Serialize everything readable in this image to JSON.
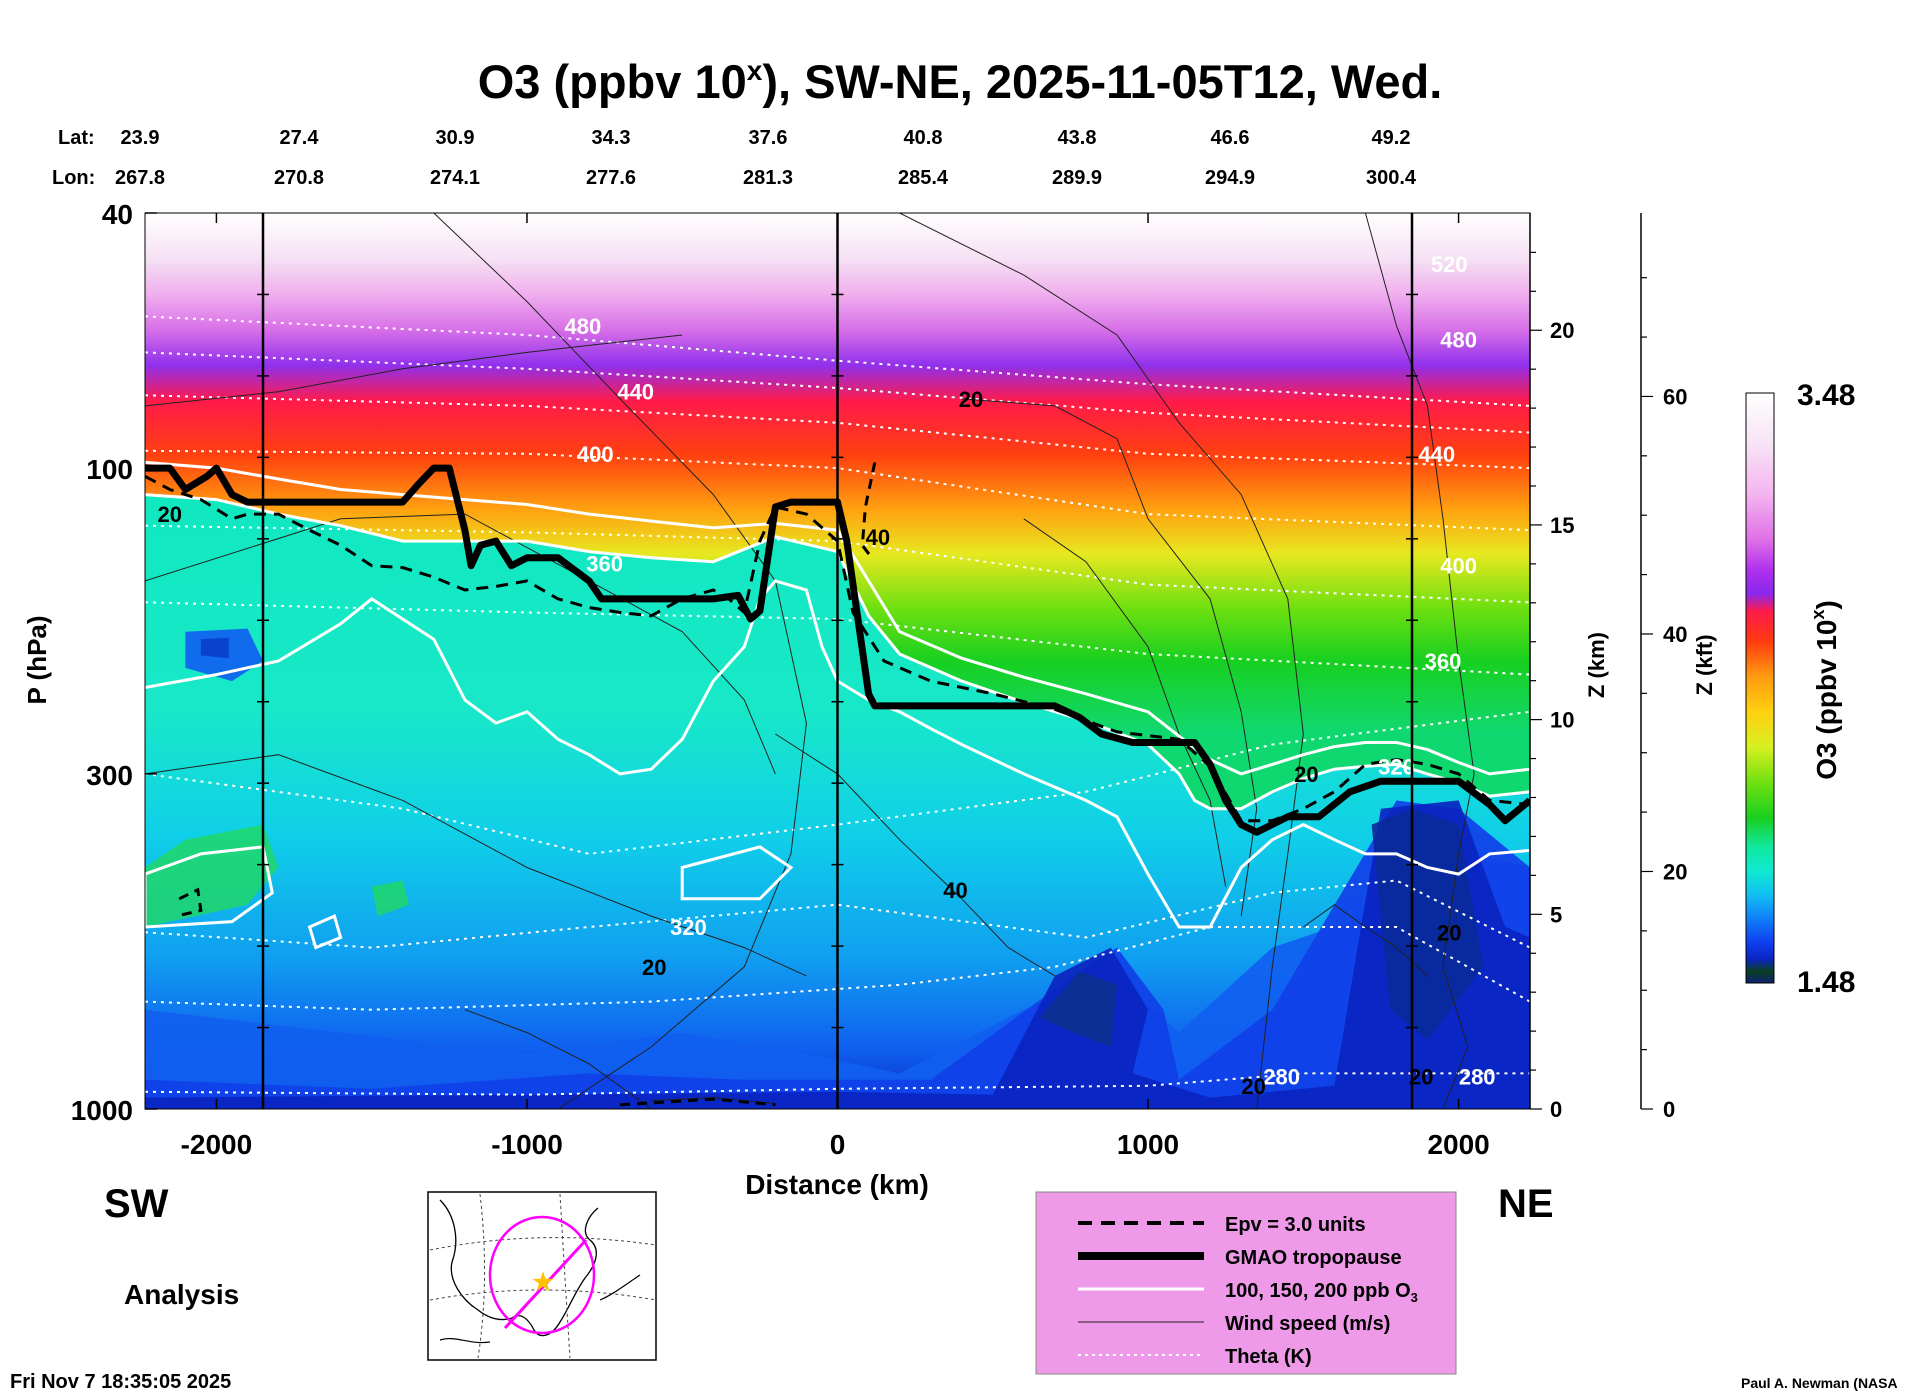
{
  "title": {
    "main": "O3 (ppbv 10",
    "sup": "x",
    "rest": "), SW-NE, 2025-11-05T12, Wed."
  },
  "lat_label": "Lat:",
  "lon_label": "Lon:",
  "lats": [
    "23.9",
    "27.4",
    "30.9",
    "34.3",
    "37.6",
    "40.8",
    "43.8",
    "46.6",
    "49.2"
  ],
  "lons": [
    "267.8",
    "270.8",
    "274.1",
    "277.6",
    "281.3",
    "285.4",
    "289.9",
    "294.9",
    "300.4"
  ],
  "ylabel": "P (hPa)",
  "xlabel": "Distance (km)",
  "z_km_label": "Z (km)",
  "z_kft_label": "Z (kft)",
  "colorbar_label_main": "O3 (ppbv 10",
  "colorbar_label_sup": "x",
  "colorbar_label_rest": ")",
  "colorbar_max": "3.48",
  "colorbar_min": "1.48",
  "sw_label": "SW",
  "ne_label": "NE",
  "analysis_label": "Analysis",
  "timestamp": "Fri Nov  7 18:35:05 2025",
  "credit": "Paul A. Newman (NASA",
  "legend": [
    {
      "style": "dashed",
      "label": "Epv = 3.0 units"
    },
    {
      "style": "thick",
      "label": "GMAO tropopause"
    },
    {
      "style": "white",
      "label": "100, 150, 200 ppb O",
      "sub": "3"
    },
    {
      "style": "thin",
      "label": "Wind speed (m/s)"
    },
    {
      "style": "dotted",
      "label": "Theta (K)"
    }
  ],
  "colors": {
    "legend_bg": "#ee9ae8",
    "cross_line": "#ff00ff"
  },
  "chart_data": {
    "type": "heatmap",
    "x_ticks": [
      -2000,
      -1000,
      0,
      1000,
      2000
    ],
    "xlim": [
      -2230,
      2230
    ],
    "y_ticks_p": [
      40,
      100,
      300,
      1000
    ],
    "ylim_p": [
      1000,
      40
    ],
    "y_scale": "log",
    "z_km_ticks": [
      0,
      5,
      10,
      15,
      20
    ],
    "z_kft_ticks": [
      0,
      20,
      40,
      60
    ],
    "colorbar_range": [
      1.48,
      3.48
    ],
    "vertical_lines_km": [
      -1850,
      0,
      1850
    ],
    "theta_labels": [
      {
        "text": "520",
        "x": 1970,
        "p": 48
      },
      {
        "text": "480",
        "x": -820,
        "p": 60
      },
      {
        "text": "480",
        "x": 2000,
        "p": 63
      },
      {
        "text": "440",
        "x": -650,
        "p": 76
      },
      {
        "text": "440",
        "x": 1930,
        "p": 95
      },
      {
        "text": "400",
        "x": -780,
        "p": 95
      },
      {
        "text": "400",
        "x": 2000,
        "p": 142
      },
      {
        "text": "360",
        "x": -750,
        "p": 141
      },
      {
        "text": "360",
        "x": 1950,
        "p": 200
      },
      {
        "text": "320",
        "x": -480,
        "p": 520
      },
      {
        "text": "320",
        "x": 1800,
        "p": 292
      },
      {
        "text": "280",
        "x": 1430,
        "p": 890
      },
      {
        "text": "280",
        "x": 2060,
        "p": 890
      }
    ],
    "wind_labels": [
      {
        "text": "20",
        "x": -2150,
        "p": 118
      },
      {
        "text": "20",
        "x": 430,
        "p": 78
      },
      {
        "text": "40",
        "x": 130,
        "p": 128
      },
      {
        "text": "20",
        "x": 1510,
        "p": 300
      },
      {
        "text": "40",
        "x": 380,
        "p": 455
      },
      {
        "text": "20",
        "x": -590,
        "p": 600
      },
      {
        "text": "20",
        "x": 1970,
        "p": 530
      },
      {
        "text": "20",
        "x": 1340,
        "p": 920
      },
      {
        "text": "20",
        "x": 1880,
        "p": 890
      }
    ],
    "tropopause_p": [
      [
        -2230,
        100
      ],
      [
        -2150,
        100
      ],
      [
        -2100,
        108
      ],
      [
        -2030,
        103
      ],
      [
        -2000,
        100
      ],
      [
        -1950,
        110
      ],
      [
        -1900,
        113
      ],
      [
        -1850,
        113
      ],
      [
        -1400,
        113
      ],
      [
        -1350,
        106
      ],
      [
        -1300,
        100
      ],
      [
        -1250,
        100
      ],
      [
        -1200,
        125
      ],
      [
        -1180,
        142
      ],
      [
        -1150,
        132
      ],
      [
        -1100,
        130
      ],
      [
        -1050,
        142
      ],
      [
        -1000,
        138
      ],
      [
        -900,
        138
      ],
      [
        -800,
        150
      ],
      [
        -760,
        160
      ],
      [
        -400,
        160
      ],
      [
        -320,
        158
      ],
      [
        -280,
        172
      ],
      [
        -250,
        167
      ],
      [
        -200,
        115
      ],
      [
        -150,
        113
      ],
      [
        0,
        113
      ],
      [
        30,
        130
      ],
      [
        100,
        225
      ],
      [
        120,
        235
      ],
      [
        500,
        235
      ],
      [
        700,
        235
      ],
      [
        780,
        245
      ],
      [
        850,
        260
      ],
      [
        950,
        268
      ],
      [
        1150,
        268
      ],
      [
        1200,
        290
      ],
      [
        1250,
        330
      ],
      [
        1300,
        360
      ],
      [
        1350,
        370
      ],
      [
        1450,
        350
      ],
      [
        1550,
        350
      ],
      [
        1650,
        320
      ],
      [
        1750,
        308
      ],
      [
        2000,
        308
      ],
      [
        2100,
        335
      ],
      [
        2150,
        355
      ],
      [
        2230,
        330
      ]
    ],
    "epv_p": [
      [
        -2230,
        103
      ],
      [
        -2150,
        108
      ],
      [
        -2050,
        112
      ],
      [
        -1950,
        120
      ],
      [
        -1900,
        118
      ],
      [
        -1800,
        118
      ],
      [
        -1700,
        125
      ],
      [
        -1600,
        132
      ],
      [
        -1500,
        142
      ],
      [
        -1400,
        143
      ],
      [
        -1300,
        148
      ],
      [
        -1200,
        155
      ],
      [
        -1100,
        153
      ],
      [
        -1000,
        150
      ],
      [
        -900,
        160
      ],
      [
        -800,
        165
      ],
      [
        -700,
        168
      ],
      [
        -600,
        170
      ],
      [
        -500,
        160
      ],
      [
        -400,
        155
      ],
      [
        -350,
        160
      ],
      [
        -300,
        168
      ],
      [
        -250,
        130
      ],
      [
        -200,
        115
      ],
      [
        -100,
        118
      ],
      [
        0,
        130
      ],
      [
        50,
        168
      ],
      [
        150,
        200
      ],
      [
        300,
        215
      ],
      [
        500,
        225
      ],
      [
        700,
        238
      ],
      [
        900,
        258
      ],
      [
        1100,
        265
      ],
      [
        1200,
        292
      ],
      [
        1300,
        355
      ],
      [
        1400,
        355
      ],
      [
        1500,
        340
      ],
      [
        1600,
        320
      ],
      [
        1700,
        290
      ],
      [
        1800,
        285
      ],
      [
        1900,
        290
      ],
      [
        2000,
        300
      ],
      [
        2100,
        330
      ],
      [
        2230,
        335
      ]
    ],
    "o3_100ppb_p": [
      [
        -2230,
        220
      ],
      [
        -2000,
        210
      ],
      [
        -1800,
        200
      ],
      [
        -1600,
        175
      ],
      [
        -1500,
        160
      ],
      [
        -1300,
        185
      ],
      [
        -1200,
        230
      ],
      [
        -1100,
        250
      ],
      [
        -1000,
        240
      ],
      [
        -900,
        265
      ],
      [
        -800,
        280
      ],
      [
        -700,
        300
      ],
      [
        -600,
        295
      ],
      [
        -500,
        265
      ],
      [
        -400,
        215
      ],
      [
        -300,
        190
      ],
      [
        -250,
        160
      ],
      [
        -200,
        150
      ],
      [
        -100,
        155
      ],
      [
        -50,
        190
      ],
      [
        0,
        215
      ],
      [
        100,
        230
      ],
      [
        200,
        240
      ],
      [
        300,
        255
      ],
      [
        400,
        270
      ],
      [
        600,
        300
      ],
      [
        800,
        330
      ],
      [
        900,
        350
      ],
      [
        1000,
        430
      ],
      [
        1100,
        520
      ],
      [
        1200,
        520
      ],
      [
        1300,
        420
      ],
      [
        1400,
        380
      ],
      [
        1500,
        360
      ],
      [
        1600,
        380
      ],
      [
        1700,
        400
      ],
      [
        1800,
        400
      ],
      [
        1900,
        420
      ],
      [
        2000,
        430
      ],
      [
        2100,
        400
      ],
      [
        2230,
        395
      ]
    ],
    "o3_150ppb_p": [
      [
        -2230,
        110
      ],
      [
        -2000,
        112
      ],
      [
        -1800,
        118
      ],
      [
        -1600,
        123
      ],
      [
        -1400,
        130
      ],
      [
        -1200,
        130
      ],
      [
        -1000,
        130
      ],
      [
        -800,
        135
      ],
      [
        -600,
        138
      ],
      [
        -400,
        140
      ],
      [
        -200,
        128
      ],
      [
        0,
        135
      ],
      [
        100,
        170
      ],
      [
        200,
        195
      ],
      [
        400,
        215
      ],
      [
        600,
        232
      ],
      [
        800,
        248
      ],
      [
        1000,
        270
      ],
      [
        1100,
        300
      ],
      [
        1150,
        330
      ],
      [
        1200,
        340
      ],
      [
        1300,
        340
      ],
      [
        1400,
        320
      ],
      [
        1500,
        305
      ],
      [
        1600,
        295
      ],
      [
        1700,
        292
      ],
      [
        1800,
        290
      ],
      [
        1900,
        300
      ],
      [
        2000,
        310
      ],
      [
        2100,
        325
      ],
      [
        2230,
        320
      ]
    ],
    "o3_200ppb_p": [
      [
        -2230,
        98
      ],
      [
        -2000,
        100
      ],
      [
        -1800,
        104
      ],
      [
        -1600,
        108
      ],
      [
        -1400,
        110
      ],
      [
        -1200,
        112
      ],
      [
        -1000,
        114
      ],
      [
        -800,
        118
      ],
      [
        -600,
        121
      ],
      [
        -400,
        124
      ],
      [
        -200,
        122
      ],
      [
        0,
        125
      ],
      [
        100,
        150
      ],
      [
        200,
        180
      ],
      [
        400,
        198
      ],
      [
        600,
        212
      ],
      [
        800,
        225
      ],
      [
        1000,
        240
      ],
      [
        1100,
        262
      ],
      [
        1200,
        285
      ],
      [
        1300,
        300
      ],
      [
        1400,
        290
      ],
      [
        1500,
        280
      ],
      [
        1600,
        272
      ],
      [
        1700,
        268
      ],
      [
        1800,
        268
      ],
      [
        1900,
        275
      ],
      [
        2000,
        288
      ],
      [
        2100,
        300
      ],
      [
        2230,
        295
      ]
    ]
  }
}
